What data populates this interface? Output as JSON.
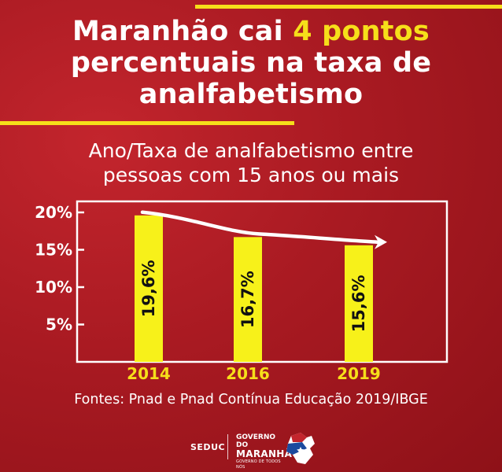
{
  "headline": {
    "line1_prefix": "Maranhão cai ",
    "line1_highlight": "4 pontos",
    "line2": "percentuais na taxa de",
    "line3": "analfabetismo"
  },
  "subtitle": {
    "line1": "Ano/Taxa de analfabetismo entre",
    "line2": "pessoas com 15 anos ou mais"
  },
  "source": "Fontes: Pnad e Pnad Contínua Educação 2019/IBGE",
  "footer": {
    "seduc": "SEDUC",
    "gov_top": "GOVERNO DO",
    "gov_name": "MARANHÃO",
    "gov_tagline": "GOVERNO DE TODOS NÓS"
  },
  "colors": {
    "background": "#a91a22",
    "accent_yellow": "#f6df1a",
    "bar": "#f7f11a",
    "text": "#ffffff"
  },
  "chart_data": {
    "type": "bar",
    "title": "Ano/Taxa de analfabetismo entre pessoas com 15 anos ou mais",
    "categories": [
      "2014",
      "2016",
      "2019"
    ],
    "values": [
      19.6,
      16.7,
      15.6
    ],
    "data_labels": [
      "19,6%",
      "16,7%",
      "15,6%"
    ],
    "ylim": [
      0,
      20
    ],
    "yticks": [
      5,
      10,
      15,
      20
    ],
    "ytick_labels": [
      "5%",
      "10%",
      "15%",
      "20%"
    ],
    "xlabel": "",
    "ylabel": "",
    "grid": false,
    "trend_arrow": true
  }
}
